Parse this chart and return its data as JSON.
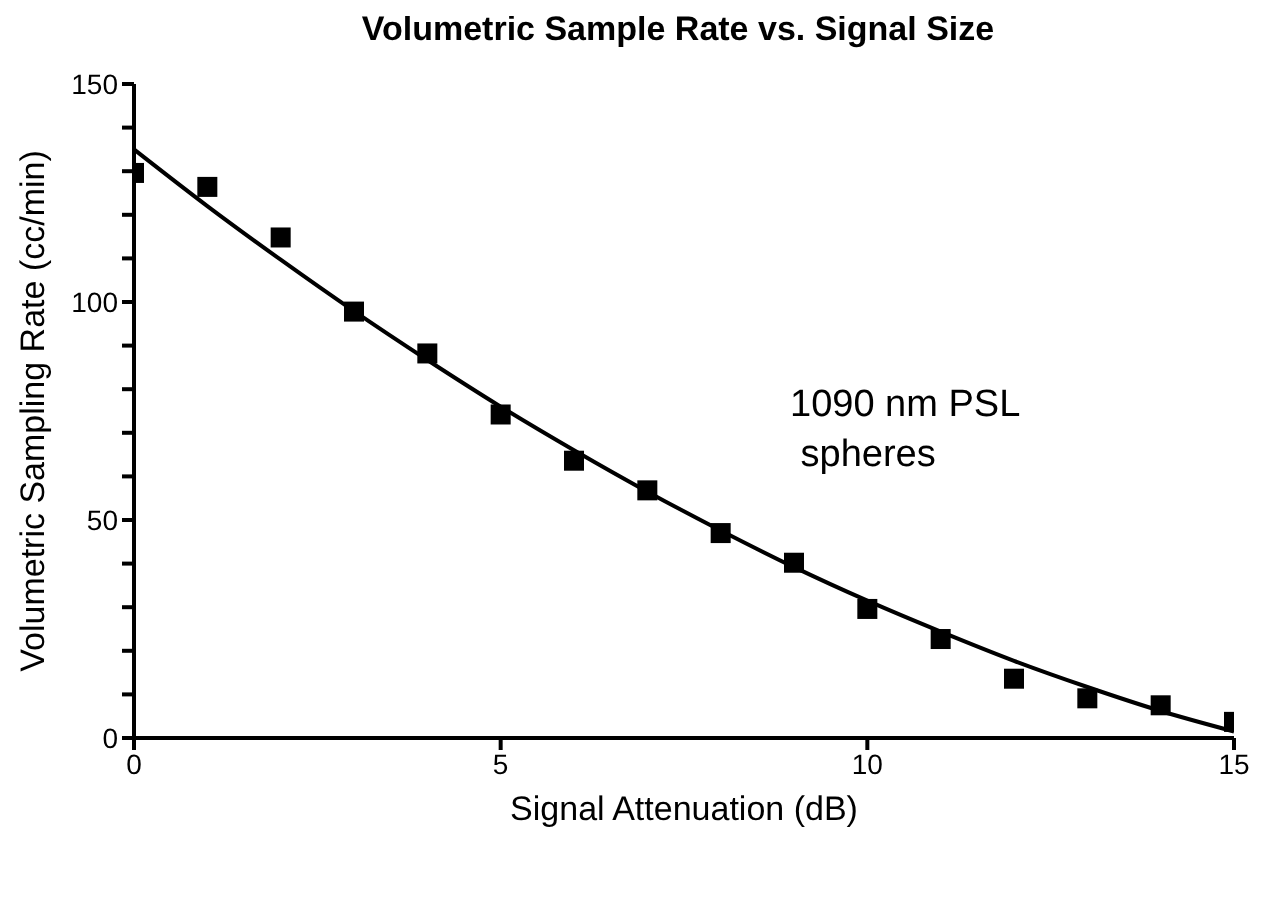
{
  "chart_data": {
    "type": "scatter",
    "title": "Volumetric Sample Rate vs. Signal Size",
    "xlabel": "Signal Attenuation (dB)",
    "ylabel": "Volumetric Sampling Rate (cc/min)",
    "annotations": [
      "1090 nm PSL\n spheres"
    ],
    "x": [
      0,
      1,
      2,
      3,
      4,
      5,
      6,
      7,
      8,
      9,
      10,
      11,
      12,
      13,
      14,
      15
    ],
    "series": [
      {
        "color": "#000000",
        "marker": "square",
        "values": [
          129.6,
          126.4,
          114.8,
          97.8,
          88.2,
          74.2,
          63.6,
          56.8,
          47.0,
          40.2,
          29.6,
          22.7,
          13.6,
          9.1,
          7.5,
          3.7
        ]
      },
      {
        "type": "line",
        "color": "#000000",
        "marker": "none",
        "line_style": "solid",
        "values": [
          135.0,
          122.0,
          109.7,
          97.9,
          86.7,
          76.0,
          66.0,
          56.5,
          47.6,
          39.2,
          31.5,
          24.4,
          17.7,
          11.7,
          6.2,
          1.5
        ]
      }
    ],
    "xlim": [
      0,
      15
    ],
    "xticks": [
      0,
      5,
      10,
      15
    ],
    "ylim": [
      0,
      150
    ],
    "yticks": [
      0,
      {
        "value": 10,
        "label": null
      },
      {
        "value": 20,
        "label": null
      },
      {
        "value": 30,
        "label": null
      },
      {
        "value": 40,
        "label": null
      },
      50,
      {
        "value": 60,
        "label": null
      },
      {
        "value": 70,
        "label": null
      },
      {
        "value": 80,
        "label": null
      },
      {
        "value": 90,
        "label": null
      },
      100,
      {
        "value": 110,
        "label": null
      },
      {
        "value": 120,
        "label": null
      },
      {
        "value": 130,
        "label": null
      },
      {
        "value": 140,
        "label": null
      },
      150
    ],
    "grid": false,
    "legend": false
  }
}
